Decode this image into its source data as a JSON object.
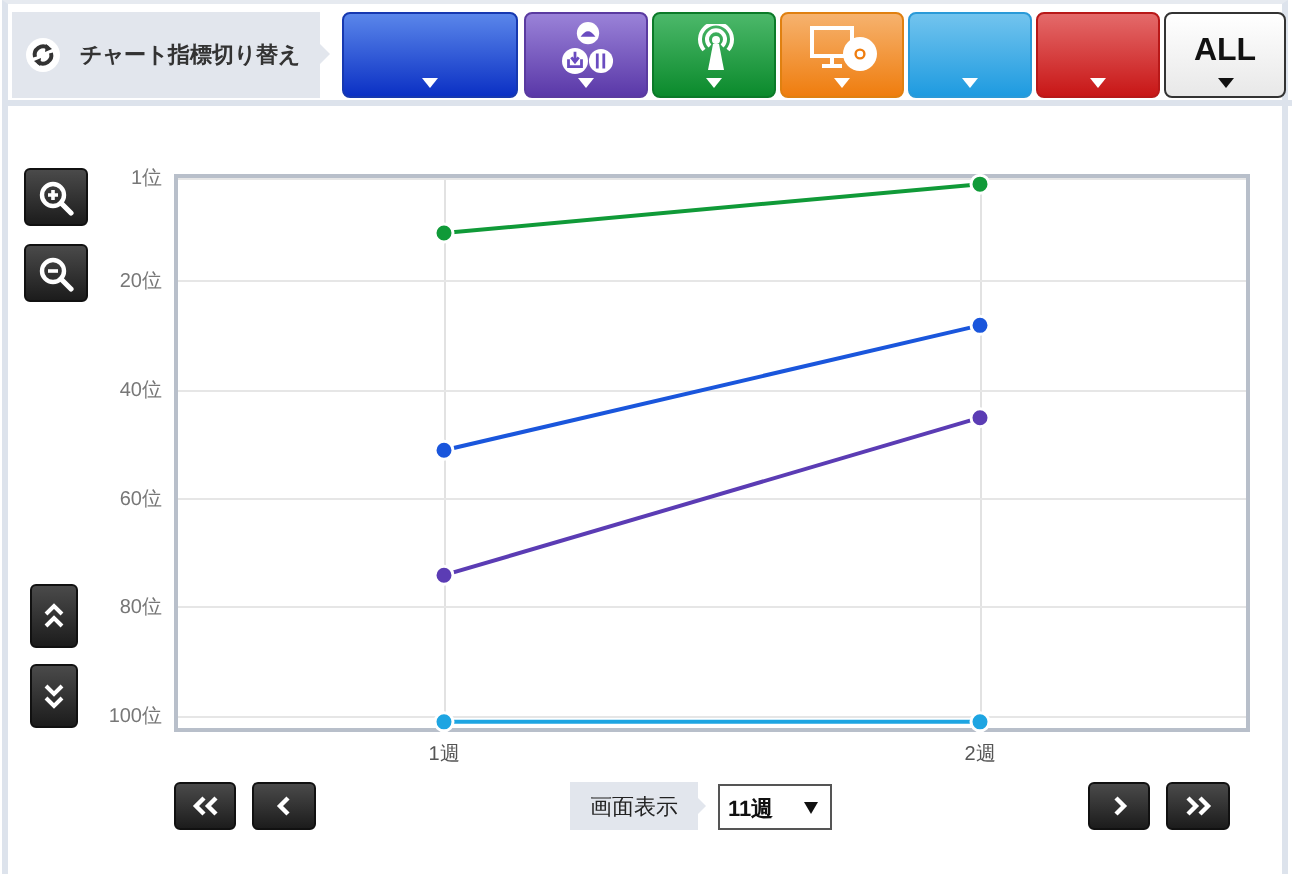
{
  "chart_data": {
    "type": "line",
    "categories": [
      "1週",
      "2週"
    ],
    "series": [
      {
        "color": "#109a38",
        "values": [
          11,
          2
        ]
      },
      {
        "color": "#1a56dc",
        "values": [
          51,
          28
        ]
      },
      {
        "color": "#5b3cb4",
        "values": [
          74,
          45
        ]
      },
      {
        "color": "#1ea5e2",
        "values": [
          101,
          101
        ]
      }
    ],
    "ylim": [
      102.5,
      0.5
    ],
    "yticks": [
      {
        "value": 1,
        "label": "1位"
      },
      {
        "value": 20,
        "label": "20位"
      },
      {
        "value": 40,
        "label": "40位"
      },
      {
        "value": 60,
        "label": "60位"
      },
      {
        "value": 80,
        "label": "80位"
      },
      {
        "value": 100,
        "label": "100位"
      }
    ],
    "grid": true,
    "marker": "circle",
    "line_style": "solid",
    "annotations": [
      "チャート指標切り替え",
      "ALL",
      "画面表示",
      "11週"
    ]
  }
}
